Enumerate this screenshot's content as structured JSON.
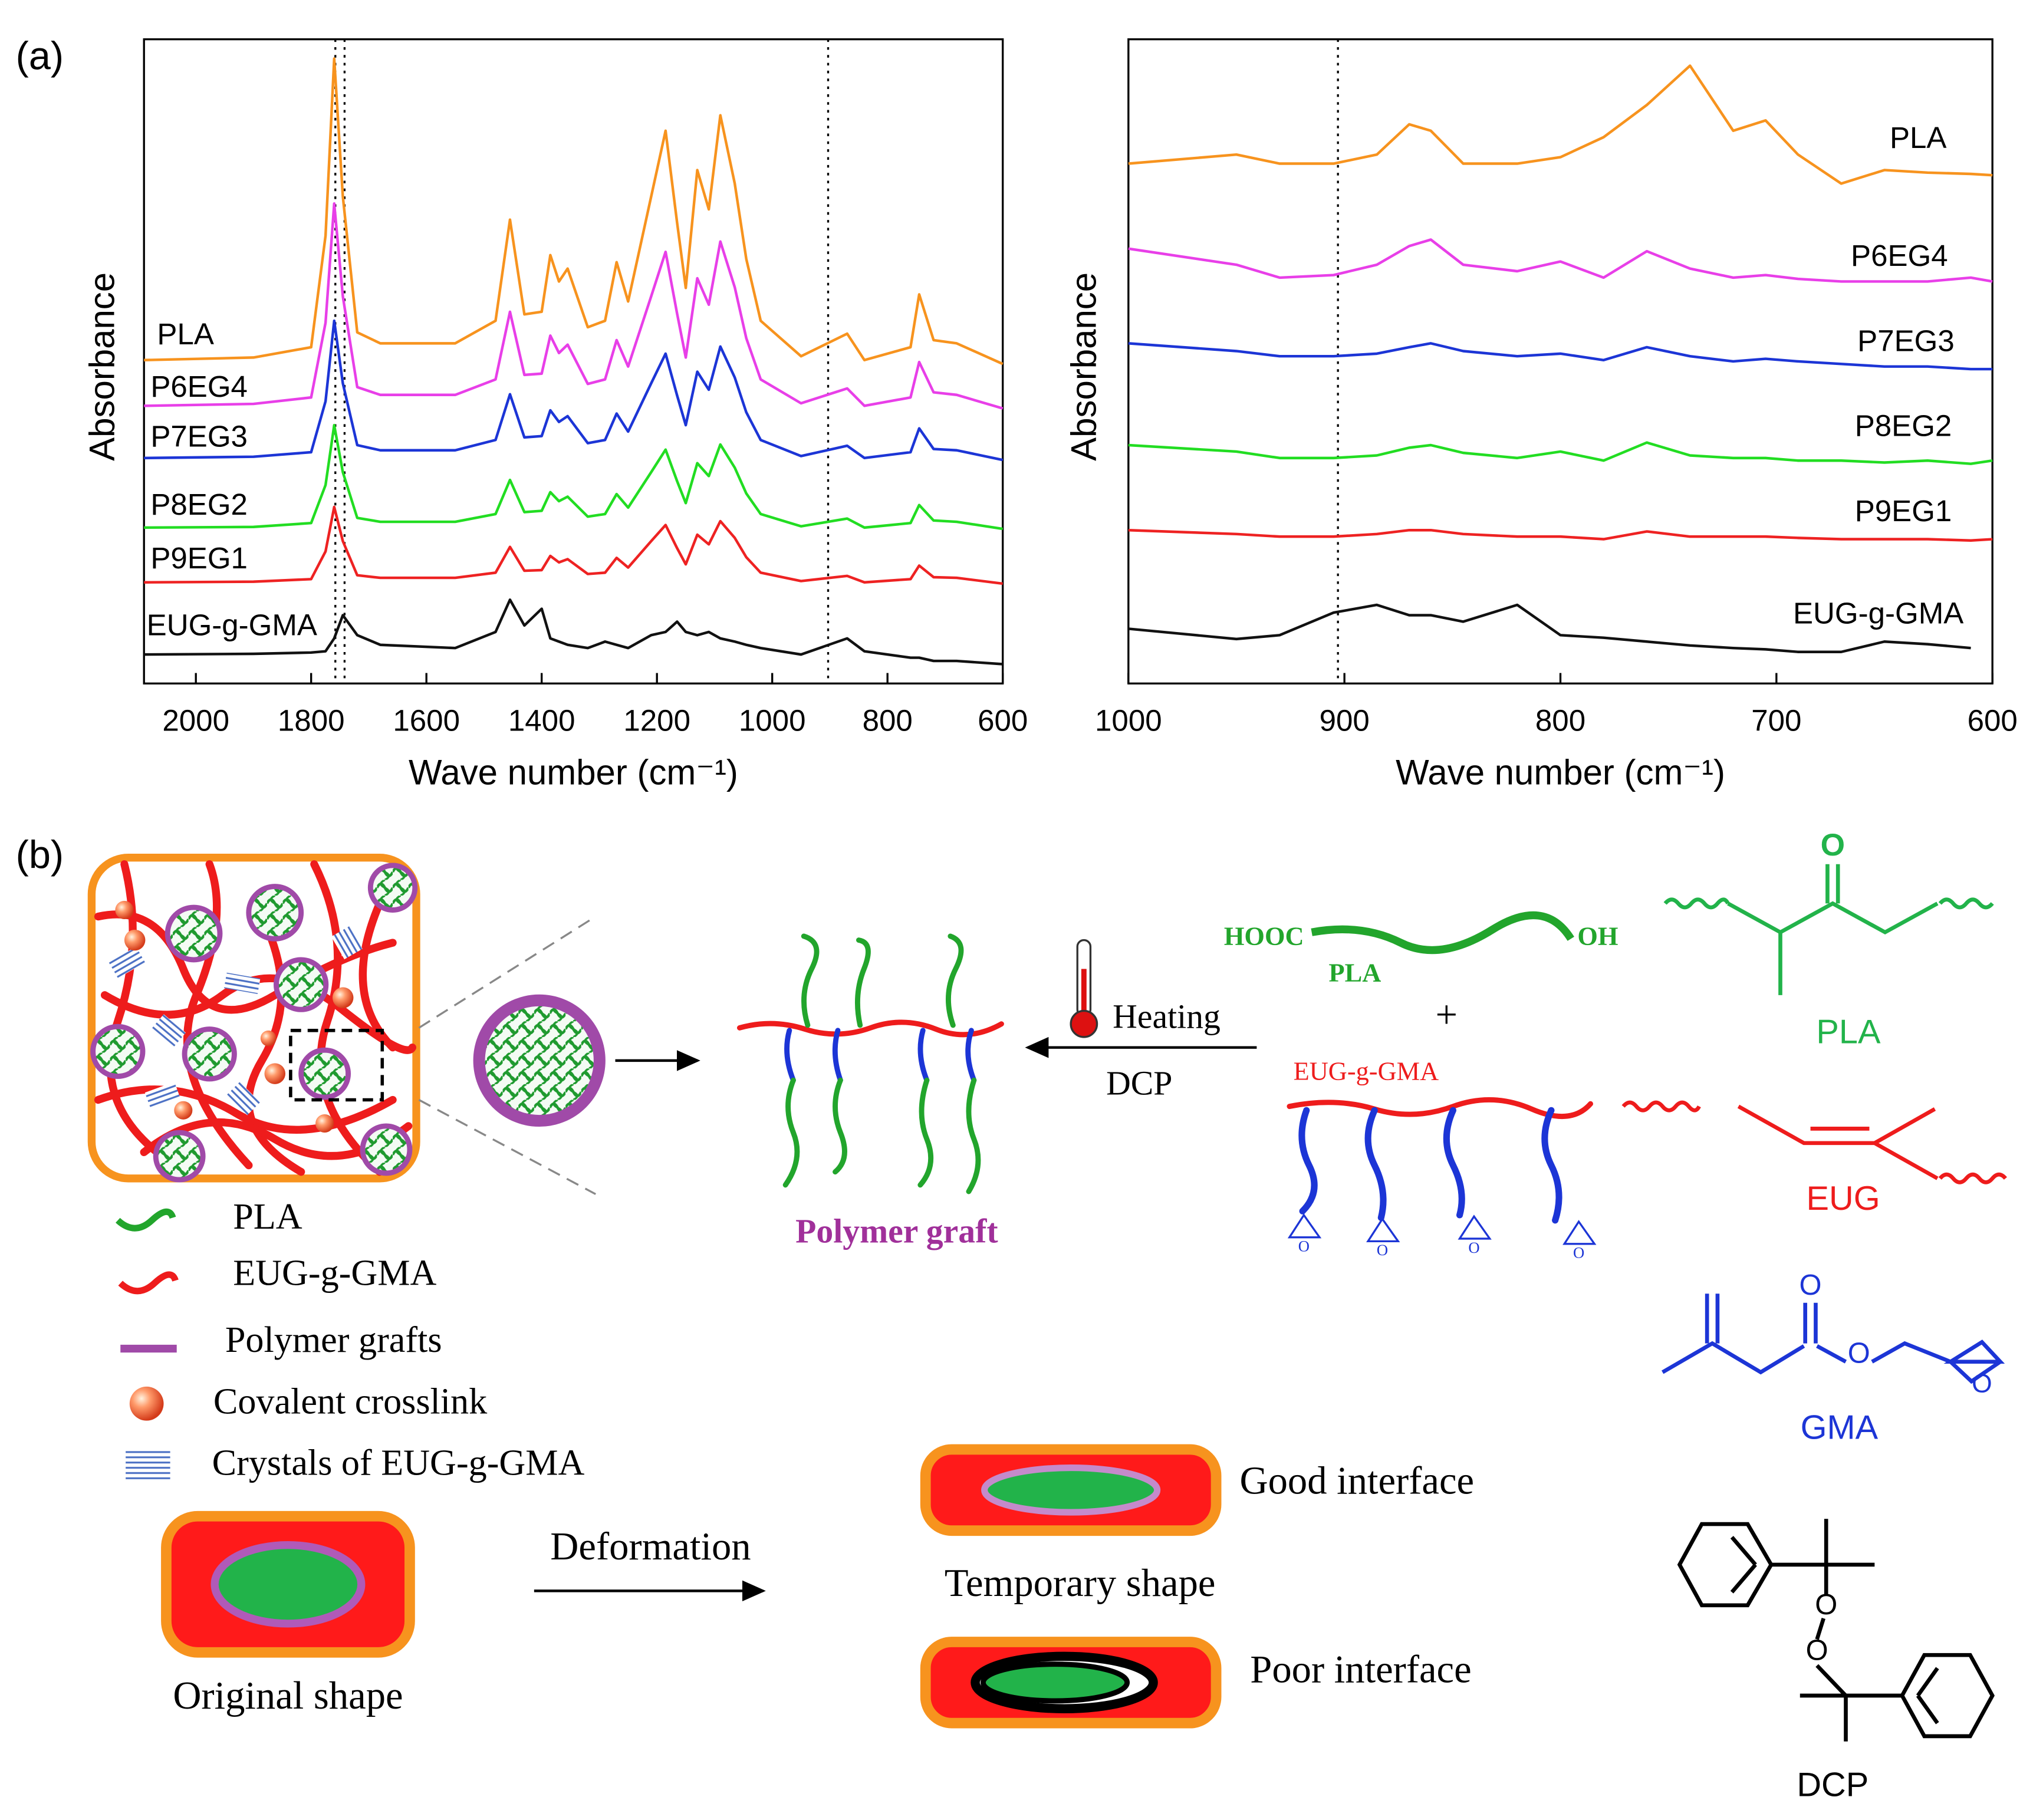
{
  "panel_labels": [
    "(a)",
    "(b)"
  ],
  "chart_data": [
    {
      "type": "line",
      "xlabel": "Wave number (cm⁻¹)",
      "ylabel": "Absorbance",
      "x": [
        2090,
        1900,
        1800,
        1775,
        1760,
        1745,
        1720,
        1680,
        1550,
        1480,
        1455,
        1430,
        1400,
        1385,
        1370,
        1355,
        1320,
        1290,
        1270,
        1250,
        1210,
        1185,
        1165,
        1150,
        1130,
        1110,
        1090,
        1065,
        1045,
        1020,
        950,
        870,
        840,
        760,
        745,
        720,
        680,
        600
      ],
      "xlim": [
        2090,
        600
      ],
      "xticks": [
        2000,
        1800,
        1600,
        1400,
        1200,
        1000,
        800,
        600
      ],
      "ylim": [
        0,
        100
      ],
      "vlines": [
        1758,
        1742,
        903
      ],
      "series": [
        {
          "name": "PLA",
          "color": "#f7931e",
          "values": [
            50.2,
            50.6,
            52.2,
            69.5,
            97,
            75.6,
            54.5,
            52.8,
            52.8,
            56.3,
            72,
            57.3,
            57.7,
            66.5,
            62.4,
            64.4,
            55.3,
            56.3,
            65.4,
            59.3,
            75.6,
            85.8,
            71.5,
            61.4,
            79.7,
            73.6,
            88.2,
            77.6,
            65.9,
            56.3,
            50.8,
            54.3,
            50.2,
            52.2,
            60.4,
            53.3,
            52.8,
            49.6
          ]
        },
        {
          "name": "P6EG4",
          "color": "#e83fe8",
          "values": [
            43.1,
            43.4,
            44.4,
            56,
            74.5,
            60.1,
            46,
            44.8,
            44.8,
            47.2,
            57.7,
            47.9,
            48.1,
            54,
            51.3,
            52.6,
            46.5,
            47.2,
            53.3,
            49.2,
            60.1,
            67,
            57.4,
            50.6,
            62.9,
            58.8,
            68.6,
            61.5,
            53.6,
            47.2,
            43.5,
            45.8,
            43.1,
            44.4,
            49.9,
            45.2,
            44.8,
            42.7
          ]
        },
        {
          "name": "P7EG3",
          "color": "#1c35d6",
          "values": [
            35,
            35.2,
            35.9,
            43.8,
            56.3,
            46.6,
            37,
            36.2,
            36.2,
            37.8,
            44.9,
            38.2,
            38.4,
            42.4,
            40.6,
            41.5,
            37.3,
            37.8,
            41.9,
            39.1,
            46.6,
            51.2,
            44.7,
            40.1,
            48.4,
            45.6,
            52.3,
            47.5,
            42.1,
            37.8,
            35.3,
            36.9,
            35,
            35.9,
            39.6,
            36.4,
            36.2,
            34.7
          ]
        },
        {
          "name": "P8EG2",
          "color": "#22dd22",
          "values": [
            24.2,
            24.3,
            24.9,
            30.8,
            40.1,
            32.8,
            25.7,
            25.1,
            25.1,
            26.3,
            31.6,
            26.6,
            26.8,
            29.7,
            28.3,
            29,
            25.9,
            26.3,
            29.4,
            27.3,
            32.8,
            36.3,
            31.4,
            28,
            34.2,
            32.2,
            37.1,
            33.5,
            29.5,
            26.3,
            24.4,
            25.6,
            24.2,
            24.9,
            27.7,
            25.3,
            25.1,
            24
          ]
        },
        {
          "name": "P9EG1",
          "color": "#ee2222",
          "values": [
            15.7,
            15.8,
            16.2,
            20.5,
            27.4,
            22.1,
            16.8,
            16.4,
            16.4,
            17.2,
            21.2,
            17.5,
            17.6,
            19.8,
            18.8,
            19.3,
            17,
            17.2,
            19.5,
            18,
            22.1,
            24.6,
            21,
            18.5,
            23.1,
            21.6,
            25.2,
            22.6,
            19.6,
            17.2,
            15.9,
            16.7,
            15.7,
            16.2,
            18.3,
            16.5,
            16.4,
            15.5
          ]
        },
        {
          "name": "EUG-g-GMA",
          "color": "#111111",
          "values": [
            4.5,
            4.6,
            4.8,
            5,
            7,
            10.6,
            7.5,
            6,
            5.5,
            8,
            13,
            9,
            11.6,
            7,
            6.5,
            6,
            5.5,
            6.5,
            6,
            5.5,
            7.5,
            8,
            9.6,
            8,
            7.5,
            8,
            7,
            6.5,
            6,
            5.5,
            4.5,
            7,
            5,
            4,
            4,
            3.5,
            3.5,
            3
          ]
        }
      ]
    },
    {
      "type": "line",
      "xlabel": "Wave number (cm⁻¹)",
      "ylabel": "Absorbance",
      "x": [
        1000,
        950,
        930,
        905,
        885,
        870,
        860,
        845,
        820,
        800,
        780,
        760,
        740,
        720,
        705,
        690,
        670,
        650,
        630,
        610,
        600
      ],
      "xlim": [
        1000,
        600
      ],
      "xticks": [
        1000,
        900,
        800,
        700,
        600
      ],
      "ylim": [
        0,
        100
      ],
      "vlines": [
        903
      ],
      "series": [
        {
          "name": "PLA",
          "color": "#f7931e",
          "values": [
            80.7,
            82.1,
            80.7,
            80.7,
            82.1,
            86.8,
            85.8,
            80.7,
            80.7,
            81.7,
            84.8,
            89.8,
            95.9,
            85.8,
            87.4,
            82.1,
            77.6,
            79.7,
            79.3,
            79.1,
            78.9
          ]
        },
        {
          "name": "P6EG4",
          "color": "#e83fe8",
          "values": [
            67.5,
            65,
            63,
            63.4,
            65,
            67.9,
            68.9,
            65,
            64,
            65.5,
            63,
            67.1,
            64.4,
            63,
            63.4,
            62.8,
            62.4,
            62.4,
            62.4,
            63,
            62.4
          ]
        },
        {
          "name": "P7EG3",
          "color": "#1c35d6",
          "values": [
            52.8,
            51.6,
            50.8,
            50.8,
            51.2,
            52.2,
            52.8,
            51.6,
            50.8,
            51.2,
            50.2,
            52.2,
            50.8,
            50,
            50.4,
            50,
            49.6,
            49.2,
            49.2,
            48.8,
            48.8
          ]
        },
        {
          "name": "P8EG2",
          "color": "#22dd22",
          "values": [
            37,
            36,
            35,
            35,
            35.4,
            36.6,
            37,
            35.8,
            35,
            36,
            34.6,
            37.4,
            35.4,
            35,
            35,
            34.6,
            34.6,
            34.3,
            34.6,
            34.1,
            34.6
          ]
        },
        {
          "name": "P9EG1",
          "color": "#ee2222",
          "values": [
            23.8,
            23.2,
            22.8,
            22.8,
            23.2,
            23.8,
            23.8,
            23.2,
            22.8,
            22.8,
            22.4,
            23.6,
            22.8,
            22.8,
            22.8,
            22.6,
            22.4,
            22.4,
            22.4,
            22.2,
            22.4
          ]
        },
        {
          "name": "EUG-g-GMA",
          "color": "#111111",
          "values": [
            8.5,
            6.9,
            7.5,
            11,
            12.2,
            10.6,
            10.6,
            9.6,
            12.2,
            7.5,
            7.1,
            6.5,
            5.9,
            5.5,
            5.3,
            4.9,
            4.9,
            6.5,
            6.1,
            5.5,
            null
          ]
        }
      ]
    }
  ],
  "diagram": {
    "legend": [
      "PLA",
      "EUG-g-GMA",
      "Polymer grafts",
      "Covalent crosslink",
      "Crystals of EUG-g-GMA"
    ],
    "original_shape": "Original shape",
    "deformation": "Deformation",
    "temporary_shape": "Temporary shape",
    "good_interface": "Good interface",
    "poor_interface": "Poor interface",
    "heating": "Heating",
    "dcp": "DCP",
    "polymer_graft": "Polymer graft",
    "reactants": {
      "hooc": "HOOC",
      "oh": "OH",
      "pla": "PLA",
      "plus": "+",
      "eug_g_gma": "EUG-g-GMA",
      "epoxide_atoms": [
        "O",
        "O",
        "O",
        "O"
      ]
    },
    "structures": {
      "pla": {
        "label": "PLA",
        "atom": "O"
      },
      "eug": {
        "label": "EUG"
      },
      "gma": {
        "label": "GMA",
        "atoms": [
          "O",
          "O",
          "O"
        ]
      },
      "dcp": {
        "label": "DCP",
        "atoms": [
          "O",
          "O"
        ]
      }
    }
  }
}
